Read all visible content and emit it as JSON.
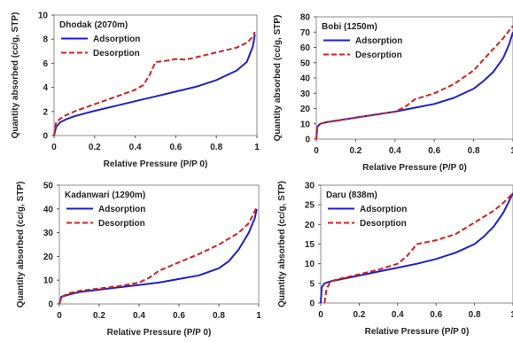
{
  "chart_data": [
    {
      "type": "line",
      "title": "Dhodak (2070m)",
      "xlabel": "Relative Pressure (P/P 0)",
      "ylabel": "Quantity absorbed (cc/g, STP)",
      "xlim": [
        0,
        1
      ],
      "ylim": [
        0,
        10
      ],
      "xticks": [
        "0",
        "0.2",
        "0.4",
        "0.6",
        "0.8",
        "1"
      ],
      "yticks": [
        "0",
        "2",
        "4",
        "6",
        "8",
        "10"
      ],
      "legend": "top-left",
      "series": [
        {
          "name": "Adsorption",
          "color": "#1f1fcf",
          "style": "solid",
          "x": [
            0,
            0.01,
            0.03,
            0.06,
            0.1,
            0.2,
            0.3,
            0.4,
            0.5,
            0.6,
            0.7,
            0.8,
            0.9,
            0.95,
            0.98,
            0.99
          ],
          "y": [
            0,
            0.7,
            1.1,
            1.35,
            1.6,
            2.05,
            2.45,
            2.85,
            3.25,
            3.65,
            4.05,
            4.6,
            5.4,
            6.1,
            7.4,
            8.4
          ]
        },
        {
          "name": "Desorption",
          "color": "#d42020",
          "style": "dashed",
          "x": [
            0,
            0.01,
            0.03,
            0.06,
            0.1,
            0.2,
            0.3,
            0.4,
            0.44,
            0.47,
            0.5,
            0.55,
            0.6,
            0.65,
            0.7,
            0.8,
            0.9,
            0.95,
            0.98,
            0.99
          ],
          "y": [
            0,
            1.1,
            1.4,
            1.7,
            2.0,
            2.6,
            3.2,
            3.8,
            4.2,
            5.0,
            6.1,
            6.2,
            6.35,
            6.3,
            6.5,
            6.9,
            7.3,
            7.7,
            8.2,
            8.6
          ]
        }
      ]
    },
    {
      "type": "line",
      "title": "Bobi (1250m)",
      "xlabel": "Relative Pressure (P/P 0)",
      "ylabel": "Quantity absorbed (cc/g, STP)",
      "xlim": [
        0,
        1
      ],
      "ylim": [
        0,
        80
      ],
      "xticks": [
        "0",
        "0.2",
        "0.4",
        "0.6",
        "0.8",
        "1"
      ],
      "yticks": [
        "0",
        "10",
        "20",
        "30",
        "40",
        "50",
        "60",
        "70",
        "80"
      ],
      "legend": "top-left",
      "series": [
        {
          "name": "Adsorption",
          "color": "#1f1fcf",
          "style": "solid",
          "x": [
            0,
            0.005,
            0.02,
            0.05,
            0.1,
            0.2,
            0.3,
            0.4,
            0.5,
            0.6,
            0.7,
            0.8,
            0.85,
            0.9,
            0.95,
            0.98,
            1.0
          ],
          "y": [
            0,
            8,
            10,
            11,
            12,
            14,
            16,
            18,
            20.5,
            23,
            27,
            33,
            38,
            44,
            53,
            62,
            70
          ]
        },
        {
          "name": "Desorption",
          "color": "#d42020",
          "style": "dashed",
          "x": [
            0,
            0.005,
            0.02,
            0.05,
            0.1,
            0.2,
            0.3,
            0.4,
            0.45,
            0.5,
            0.6,
            0.7,
            0.8,
            0.85,
            0.9,
            0.95,
            0.98,
            1.0
          ],
          "y": [
            0,
            8,
            10,
            11,
            12,
            14,
            16,
            18,
            21,
            26,
            30,
            36,
            45,
            52,
            59,
            66,
            71,
            74
          ]
        }
      ]
    },
    {
      "type": "line",
      "title": "Kadanwari (1290m)",
      "xlabel": "Relative Pressure (P/P 0)",
      "ylabel": "Quantity absorbed (cc/g, STP)",
      "xlim": [
        0,
        1
      ],
      "ylim": [
        0,
        50
      ],
      "xticks": [
        "0",
        "0.2",
        "0.4",
        "0.6",
        "0.8",
        "1"
      ],
      "yticks": [
        "0",
        "10",
        "20",
        "30",
        "40",
        "50"
      ],
      "legend": "top-left",
      "series": [
        {
          "name": "Adsorption",
          "color": "#1f1fcf",
          "style": "solid",
          "x": [
            0,
            0.01,
            0.05,
            0.1,
            0.2,
            0.3,
            0.4,
            0.5,
            0.6,
            0.7,
            0.8,
            0.85,
            0.9,
            0.95,
            0.98,
            0.99
          ],
          "y": [
            0,
            3,
            4,
            5,
            6,
            7,
            8,
            9,
            10.5,
            12,
            15,
            18,
            23,
            30,
            36,
            40
          ]
        },
        {
          "name": "Desorption",
          "color": "#d42020",
          "style": "dashed",
          "x": [
            0,
            0.01,
            0.05,
            0.1,
            0.2,
            0.3,
            0.4,
            0.45,
            0.5,
            0.6,
            0.7,
            0.8,
            0.9,
            0.95,
            0.98,
            0.99
          ],
          "y": [
            0,
            3,
            4.5,
            5.5,
            6.5,
            7.5,
            9,
            11,
            14,
            17.5,
            21,
            25,
            30,
            34,
            39,
            41
          ]
        }
      ]
    },
    {
      "type": "line",
      "title": "Daru (838m)",
      "xlabel": "Relative Pressure (P/P 0)",
      "ylabel": "Quantity absorbed (cc/g, STP)",
      "xlim": [
        0,
        1
      ],
      "ylim": [
        0,
        30
      ],
      "xticks": [
        "0",
        "0.2",
        "0.4",
        "0.6",
        "0.8",
        "1"
      ],
      "yticks": [
        "0",
        "5",
        "10",
        "15",
        "20",
        "25",
        "30"
      ],
      "legend": "top-left",
      "series": [
        {
          "name": "Adsorption",
          "color": "#1f1fcf",
          "style": "solid",
          "x": [
            0,
            0.005,
            0.02,
            0.05,
            0.1,
            0.2,
            0.3,
            0.4,
            0.5,
            0.6,
            0.7,
            0.8,
            0.85,
            0.9,
            0.95,
            0.98,
            1.0
          ],
          "y": [
            0,
            4,
            5,
            5.5,
            6,
            7,
            8,
            9,
            10,
            11.2,
            12.8,
            15,
            17,
            19.5,
            23,
            26,
            28
          ]
        },
        {
          "name": "Desorption",
          "color": "#d42020",
          "style": "dashed",
          "x": [
            0.02,
            0.03,
            0.05,
            0.1,
            0.2,
            0.3,
            0.4,
            0.45,
            0.5,
            0.6,
            0.7,
            0.8,
            0.9,
            0.95,
            0.98,
            1.0
          ],
          "y": [
            0,
            3.5,
            5.5,
            6.2,
            7.3,
            8.5,
            10,
            12,
            15,
            16,
            17.5,
            20.5,
            23.5,
            25.5,
            27,
            28
          ]
        }
      ]
    }
  ]
}
